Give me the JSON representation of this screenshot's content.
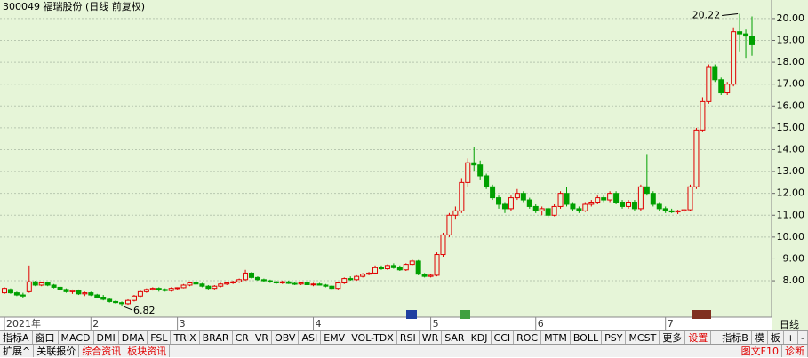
{
  "chart_data": {
    "type": "candlestick",
    "title": "300049 福瑞股份 (日线 前复权)",
    "up_color": "#e00000",
    "down_color": "#00a000",
    "background": "#e6f5d8",
    "grid": true,
    "ylim": [
      6.62,
      20.85
    ],
    "yticks": [
      {
        "value": 8,
        "label": "8.00"
      },
      {
        "value": 9,
        "label": "9.00"
      },
      {
        "value": 10,
        "label": "10.00"
      },
      {
        "value": 11,
        "label": "11.00"
      },
      {
        "value": 12,
        "label": "12.00"
      },
      {
        "value": 13,
        "label": "13.00"
      },
      {
        "value": 14,
        "label": "14.00"
      },
      {
        "value": 15,
        "label": "15.00"
      },
      {
        "value": 16,
        "label": "16.00"
      },
      {
        "value": 17,
        "label": "17.00"
      },
      {
        "value": 18,
        "label": "18.00"
      },
      {
        "value": 19,
        "label": "19.00"
      },
      {
        "value": 20,
        "label": "20.00"
      }
    ],
    "categories": [
      "2021年",
      null,
      null,
      null,
      null,
      null,
      null,
      null,
      null,
      null,
      null,
      null,
      null,
      null,
      "2",
      null,
      null,
      null,
      null,
      null,
      null,
      null,
      null,
      null,
      null,
      null,
      null,
      null,
      "3",
      null,
      null,
      null,
      null,
      null,
      null,
      null,
      null,
      null,
      null,
      null,
      null,
      null,
      null,
      null,
      null,
      null,
      null,
      null,
      null,
      null,
      "4",
      null,
      null,
      null,
      null,
      null,
      null,
      null,
      null,
      null,
      null,
      null,
      null,
      null,
      null,
      null,
      null,
      null,
      null,
      "5",
      null,
      null,
      null,
      null,
      null,
      null,
      null,
      null,
      null,
      null,
      null,
      null,
      null,
      null,
      null,
      null,
      "6",
      null,
      null,
      null,
      null,
      null,
      null,
      null,
      null,
      null,
      null,
      null,
      null,
      null,
      null,
      null,
      null,
      null,
      null,
      null,
      null,
      "7",
      null,
      null,
      null,
      null,
      null,
      null,
      null,
      null,
      null,
      null,
      null,
      null,
      null,
      null,
      null
    ],
    "ohlc": [
      [
        7.45,
        7.7,
        7.4,
        7.65
      ],
      [
        7.6,
        7.65,
        7.4,
        7.45
      ],
      [
        7.45,
        7.5,
        7.3,
        7.35
      ],
      [
        7.35,
        7.45,
        7.2,
        7.3
      ],
      [
        7.5,
        8.7,
        7.45,
        7.95
      ],
      [
        7.95,
        8.0,
        7.75,
        7.8
      ],
      [
        7.8,
        7.95,
        7.75,
        7.9
      ],
      [
        7.9,
        7.95,
        7.75,
        7.8
      ],
      [
        7.8,
        7.85,
        7.65,
        7.7
      ],
      [
        7.7,
        7.75,
        7.55,
        7.6
      ],
      [
        7.6,
        7.65,
        7.45,
        7.5
      ],
      [
        7.5,
        7.6,
        7.4,
        7.55
      ],
      [
        7.55,
        7.6,
        7.35,
        7.4
      ],
      [
        7.4,
        7.5,
        7.3,
        7.45
      ],
      [
        7.45,
        7.5,
        7.3,
        7.35
      ],
      [
        7.35,
        7.4,
        7.2,
        7.25
      ],
      [
        7.25,
        7.35,
        7.1,
        7.15
      ],
      [
        7.15,
        7.2,
        7.0,
        7.05
      ],
      [
        7.05,
        7.1,
        6.95,
        7.0
      ],
      [
        7.0,
        7.05,
        6.82,
        6.95
      ],
      [
        6.95,
        7.15,
        6.9,
        7.1
      ],
      [
        7.1,
        7.35,
        7.05,
        7.3
      ],
      [
        7.3,
        7.55,
        7.25,
        7.5
      ],
      [
        7.5,
        7.65,
        7.45,
        7.6
      ],
      [
        7.6,
        7.7,
        7.55,
        7.65
      ],
      [
        7.65,
        7.7,
        7.5,
        7.6
      ],
      [
        7.6,
        7.65,
        7.5,
        7.55
      ],
      [
        7.55,
        7.7,
        7.5,
        7.65
      ],
      [
        7.65,
        7.7,
        7.6,
        7.68
      ],
      [
        7.68,
        7.85,
        7.65,
        7.8
      ],
      [
        7.8,
        7.95,
        7.75,
        7.9
      ],
      [
        7.9,
        8.0,
        7.8,
        7.85
      ],
      [
        7.85,
        7.9,
        7.7,
        7.75
      ],
      [
        7.75,
        7.8,
        7.6,
        7.65
      ],
      [
        7.65,
        7.8,
        7.6,
        7.75
      ],
      [
        7.75,
        7.9,
        7.7,
        7.85
      ],
      [
        7.85,
        7.95,
        7.8,
        7.9
      ],
      [
        7.9,
        8.0,
        7.85,
        7.95
      ],
      [
        7.95,
        8.1,
        7.9,
        8.05
      ],
      [
        8.05,
        8.5,
        8.0,
        8.35
      ],
      [
        8.35,
        8.4,
        8.1,
        8.15
      ],
      [
        8.15,
        8.2,
        8.0,
        8.05
      ],
      [
        8.05,
        8.1,
        7.95,
        8.0
      ],
      [
        8.0,
        8.05,
        7.9,
        7.95
      ],
      [
        7.95,
        8.0,
        7.85,
        7.9
      ],
      [
        7.9,
        8.0,
        7.85,
        7.95
      ],
      [
        7.95,
        8.0,
        7.85,
        7.88
      ],
      [
        7.88,
        7.95,
        7.8,
        7.85
      ],
      [
        7.85,
        7.95,
        7.8,
        7.9
      ],
      [
        7.9,
        7.95,
        7.8,
        7.82
      ],
      [
        7.82,
        7.9,
        7.75,
        7.85
      ],
      [
        7.85,
        7.9,
        7.78,
        7.8
      ],
      [
        7.8,
        7.85,
        7.7,
        7.75
      ],
      [
        7.75,
        7.8,
        7.6,
        7.65
      ],
      [
        7.65,
        7.95,
        7.6,
        7.9
      ],
      [
        7.9,
        8.15,
        7.85,
        8.1
      ],
      [
        8.1,
        8.2,
        8.0,
        8.05
      ],
      [
        8.05,
        8.25,
        8.0,
        8.2
      ],
      [
        8.2,
        8.35,
        8.15,
        8.3
      ],
      [
        8.3,
        8.4,
        8.25,
        8.35
      ],
      [
        8.35,
        8.7,
        8.3,
        8.6
      ],
      [
        8.6,
        8.7,
        8.5,
        8.55
      ],
      [
        8.55,
        8.75,
        8.5,
        8.7
      ],
      [
        8.7,
        8.8,
        8.55,
        8.6
      ],
      [
        8.6,
        8.7,
        8.45,
        8.5
      ],
      [
        8.5,
        8.8,
        8.45,
        8.75
      ],
      [
        8.75,
        9.0,
        8.7,
        8.9
      ],
      [
        8.9,
        8.95,
        8.25,
        8.3
      ],
      [
        8.3,
        8.35,
        8.15,
        8.2
      ],
      [
        8.2,
        8.3,
        8.15,
        8.25
      ],
      [
        8.25,
        9.3,
        8.2,
        9.2
      ],
      [
        9.2,
        10.2,
        9.1,
        10.1
      ],
      [
        10.1,
        11.1,
        10.0,
        11.0
      ],
      [
        11.0,
        11.4,
        10.8,
        11.2
      ],
      [
        11.2,
        12.7,
        11.1,
        12.5
      ],
      [
        12.5,
        13.6,
        12.3,
        13.4
      ],
      [
        13.4,
        14.1,
        13.0,
        13.3
      ],
      [
        13.3,
        13.5,
        12.6,
        12.8
      ],
      [
        12.8,
        12.9,
        12.2,
        12.3
      ],
      [
        12.3,
        12.4,
        11.7,
        11.8
      ],
      [
        11.8,
        11.9,
        11.3,
        11.5
      ],
      [
        11.5,
        11.6,
        11.1,
        11.3
      ],
      [
        11.3,
        11.9,
        11.2,
        11.8
      ],
      [
        11.8,
        12.2,
        11.7,
        12.0
      ],
      [
        12.0,
        12.1,
        11.6,
        11.7
      ],
      [
        11.7,
        11.8,
        11.3,
        11.4
      ],
      [
        11.4,
        11.5,
        11.1,
        11.2
      ],
      [
        11.2,
        11.4,
        11.0,
        11.3
      ],
      [
        11.3,
        11.35,
        10.9,
        11.0
      ],
      [
        11.0,
        11.5,
        10.95,
        11.4
      ],
      [
        11.4,
        12.1,
        11.3,
        12.0
      ],
      [
        12.0,
        12.3,
        11.4,
        11.5
      ],
      [
        11.5,
        11.6,
        11.2,
        11.3
      ],
      [
        11.3,
        11.4,
        11.1,
        11.2
      ],
      [
        11.2,
        11.6,
        11.15,
        11.5
      ],
      [
        11.5,
        11.7,
        11.4,
        11.6
      ],
      [
        11.6,
        11.9,
        11.5,
        11.8
      ],
      [
        11.8,
        11.9,
        11.6,
        11.7
      ],
      [
        11.7,
        12.1,
        11.6,
        12.0
      ],
      [
        12.0,
        12.1,
        11.5,
        11.6
      ],
      [
        11.6,
        11.7,
        11.3,
        11.4
      ],
      [
        11.4,
        11.7,
        11.3,
        11.6
      ],
      [
        11.6,
        11.7,
        11.2,
        11.3
      ],
      [
        11.3,
        12.4,
        11.2,
        12.3
      ],
      [
        12.3,
        13.8,
        11.9,
        12.0
      ],
      [
        12.0,
        12.1,
        11.4,
        11.5
      ],
      [
        11.5,
        11.6,
        11.2,
        11.3
      ],
      [
        11.3,
        11.4,
        11.1,
        11.2
      ],
      [
        11.2,
        11.3,
        11.1,
        11.15
      ],
      [
        11.15,
        11.25,
        11.05,
        11.2
      ],
      [
        11.2,
        11.3,
        11.1,
        11.25
      ],
      [
        11.25,
        12.4,
        11.2,
        12.3
      ],
      [
        12.3,
        15.0,
        12.2,
        14.9
      ],
      [
        14.9,
        16.4,
        14.8,
        16.2
      ],
      [
        16.2,
        17.9,
        16.1,
        17.8
      ],
      [
        17.8,
        17.9,
        17.1,
        17.2
      ],
      [
        17.2,
        17.3,
        16.5,
        16.6
      ],
      [
        16.6,
        17.1,
        16.5,
        17.0
      ],
      [
        17.0,
        19.6,
        16.9,
        19.4
      ],
      [
        19.4,
        20.22,
        18.5,
        19.3
      ],
      [
        19.3,
        19.5,
        18.2,
        19.2
      ],
      [
        19.2,
        20.1,
        18.3,
        18.8
      ]
    ],
    "annotations": [
      {
        "text": "6.82",
        "index": 19,
        "value": 6.82,
        "side": "right"
      },
      {
        "text": "20.22",
        "index": 119,
        "value": 20.22,
        "side": "left"
      }
    ]
  },
  "tabs_row1": [
    "指标A",
    "窗口",
    "MACD",
    "DMI",
    "DMA",
    "FSL",
    "TRIX",
    "BRAR",
    "CR",
    "VR",
    "OBV",
    "ASI",
    "EMV",
    "VOL-TDX",
    "RSI",
    "WR",
    "SAR",
    "KDJ",
    "CCI",
    "ROC",
    "MTM",
    "BOLL",
    "PSY",
    "MCST",
    "更多",
    "设置"
  ],
  "tabs_row1_right": [
    "指标B",
    "模",
    "板"
  ],
  "tabs_row2": [
    "扩展^",
    "关联报价",
    "综合资讯",
    "板块资讯"
  ],
  "tabs_row2_right": [
    "图文F10",
    "诊断"
  ],
  "period": "日线",
  "zoom": [
    "+",
    "-"
  ]
}
